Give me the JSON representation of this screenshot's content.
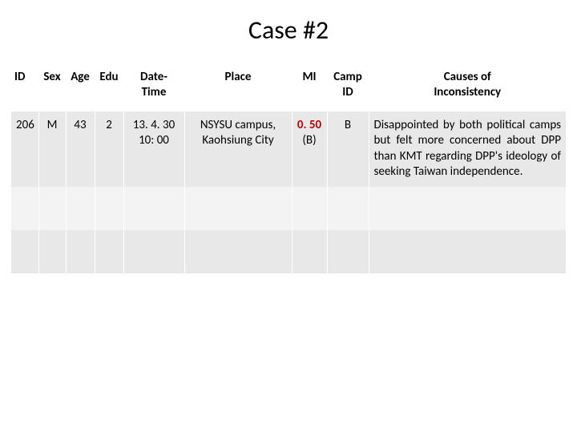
{
  "title": "Case #2",
  "table": {
    "columns": [
      {
        "key": "id",
        "label": "ID"
      },
      {
        "key": "sex",
        "label": "Sex"
      },
      {
        "key": "age",
        "label": "Age"
      },
      {
        "key": "edu",
        "label": "Edu"
      },
      {
        "key": "date",
        "label": "Date-\nTime"
      },
      {
        "key": "place",
        "label": "Place"
      },
      {
        "key": "mi",
        "label": "MI"
      },
      {
        "key": "camp",
        "label": "Camp\nID"
      },
      {
        "key": "cause",
        "label": "Causes of\nInconsistency"
      }
    ],
    "rows": [
      {
        "id": "206",
        "sex": "M",
        "age": "43",
        "edu": "2",
        "date": "13. 4. 30\n10: 00",
        "place": "NSYSU campus,\nKaohsiung City",
        "mi_value": "0. 50",
        "mi_sub": "(B)",
        "camp": "B",
        "cause": "Disappointed by both political camps but felt more concerned about DPP than KMT regarding DPP's ideology of seeking Taiwan independence."
      }
    ]
  },
  "colors": {
    "mi_highlight": "#c00000",
    "row_band_a": "#e8e8e8",
    "row_band_b": "#f3f3f3",
    "background": "#ffffff",
    "text": "#000000"
  },
  "fonts": {
    "title_size_pt": 32,
    "body_size_pt": 15,
    "family": "Calibri"
  }
}
